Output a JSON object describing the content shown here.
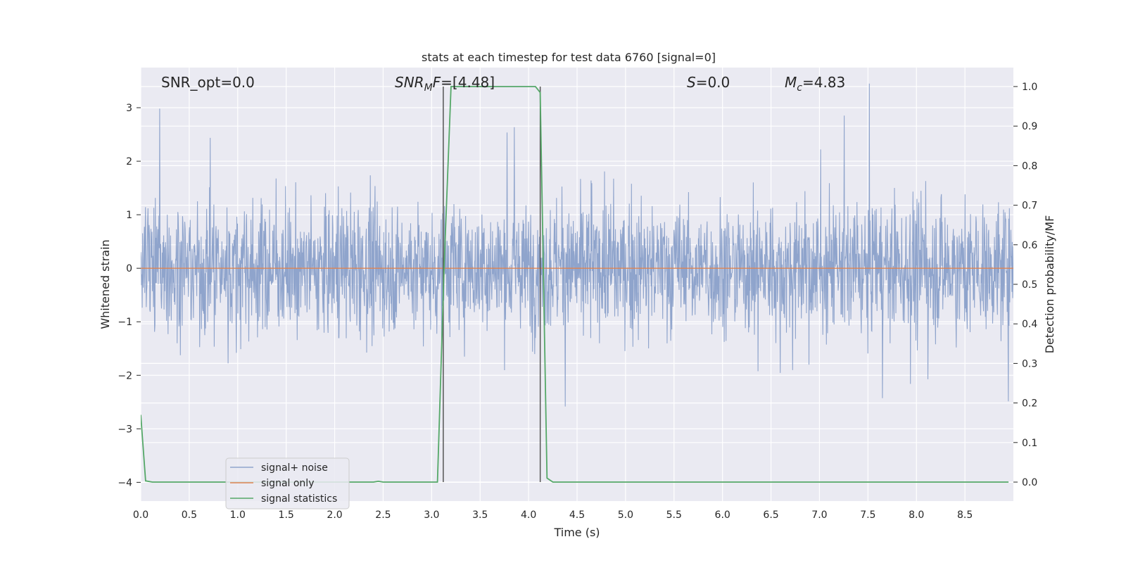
{
  "chart_data": {
    "type": "line",
    "title": "stats at each timestep for test data 6760 [signal=0]",
    "xlabel": "Time (s)",
    "ylabel": "Whitened strain",
    "y2label": "Detection probability/MF",
    "xlim": [
      0.0,
      9.0
    ],
    "ylim": [
      -4.35,
      3.75
    ],
    "y2lim": [
      -0.048,
      1.048
    ],
    "xticks": [
      "0.0",
      "0.5",
      "1.0",
      "1.5",
      "2.0",
      "2.5",
      "3.0",
      "3.5",
      "4.0",
      "4.5",
      "5.0",
      "5.5",
      "6.0",
      "6.5",
      "7.0",
      "7.5",
      "8.0",
      "8.5"
    ],
    "yticks": [
      "3",
      "2",
      "1",
      "0",
      "−1",
      "−2",
      "−3",
      "−4"
    ],
    "y2ticks": [
      "1.0",
      "0.9",
      "0.8",
      "0.7",
      "0.6",
      "0.5",
      "0.4",
      "0.3",
      "0.2",
      "0.1",
      "0.0"
    ],
    "annotations": {
      "snr_opt": "SNR_opt=0.0",
      "snr_mf_main": "SNR",
      "snr_mf_sub": "M",
      "snr_mf_tail": "F",
      "snr_mf_value": "=[4.48]",
      "s_label": "S",
      "s_value": "=0.0",
      "mc_main": "M",
      "mc_sub": "c",
      "mc_value": "=4.83"
    },
    "series": [
      {
        "name": "signal+ noise",
        "color": "#8fa4cc",
        "description": "whitened noise, roughly ±2 with peaks near ±3.5"
      },
      {
        "name": "signal only",
        "color": "#dd8452",
        "values_constant": 0.0
      },
      {
        "name": "signal statistics",
        "color": "#55a868",
        "axis": "right",
        "x": [
          0.0,
          0.05,
          0.12,
          0.5,
          1.0,
          1.5,
          2.0,
          2.4,
          2.45,
          2.5,
          3.0,
          3.06,
          3.13,
          3.2,
          3.5,
          4.0,
          4.07,
          4.12,
          4.19,
          4.25,
          5.0,
          6.0,
          7.0,
          8.0,
          8.95
        ],
        "values": [
          0.17,
          0.003,
          0.0,
          0.0,
          0.0,
          0.0,
          0.0,
          0.0,
          0.002,
          0.0,
          0.0,
          0.0,
          0.55,
          1.0,
          1.0,
          1.0,
          1.0,
          0.985,
          0.01,
          0.0,
          0.0,
          0.0,
          0.0,
          0.0,
          0.0
        ]
      }
    ],
    "vlines": [
      3.12,
      4.12
    ],
    "vline_color": "#555555",
    "legend_position": "lower-left"
  }
}
